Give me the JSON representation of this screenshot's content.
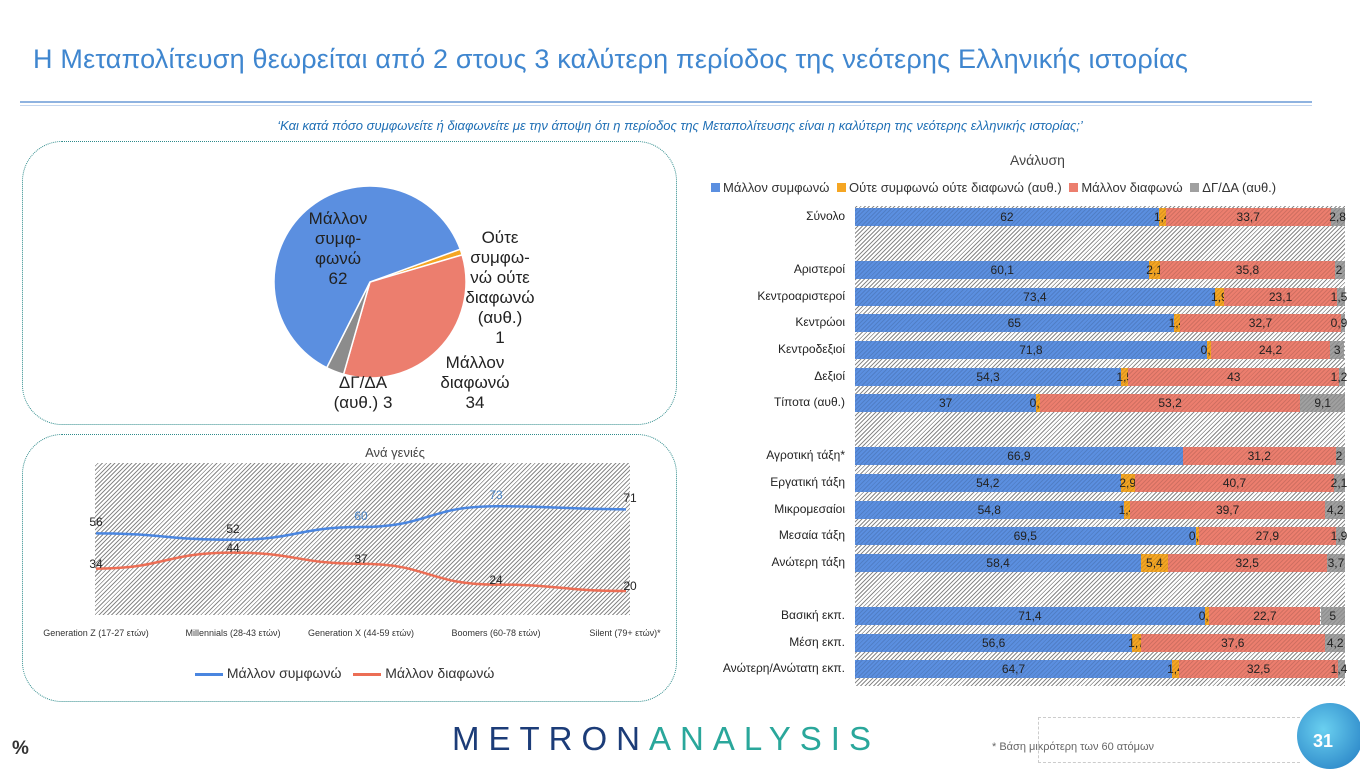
{
  "header": {
    "title": "Η Μεταπολίτευση θεωρείται από 2 στους 3 καλύτερη περίοδος της νεότερης Ελληνικής ιστορίας",
    "question": "‘Και κατά πόσο συμφωνείτε ή διαφωνείτε με την άποψη ότι η περίοδος της Μεταπολίτευσης είναι η καλύτερη της νεότερης ελληνικής ιστορίας;’"
  },
  "colors": {
    "agree": "#5b8fe0",
    "neutral": "#f5a623",
    "disagree": "#ec7e6e",
    "dk": "#a0a0a0",
    "title": "#3f86cf"
  },
  "chart_data": [
    {
      "type": "pie",
      "title": "",
      "slices": [
        {
          "label": "Ούτε συμφωνώ ούτε διαφωνώ (αυθ.)",
          "value": 1,
          "color": "#f5a623"
        },
        {
          "label": "Μάλλον διαφωνώ",
          "value": 34,
          "color": "#ec7e6e"
        },
        {
          "label": "ΔΓ/ΔΑ (αυθ.)",
          "value": 3,
          "color": "#8c8c8c"
        },
        {
          "label": "Μάλλον συμφωνώ",
          "value": 62,
          "color": "#5b8fe0"
        }
      ],
      "labels": {
        "agree": [
          "Μάλλον",
          "συμφ-",
          "φωνώ",
          "62"
        ],
        "neutral": [
          "Ούτε",
          "συμφω-",
          "νώ ούτε",
          "διαφωνώ",
          "(αυθ.)",
          "1"
        ],
        "disagree": [
          "Μάλλον",
          "διαφωνώ",
          "34"
        ],
        "dk": [
          "ΔΓ/ΔΑ",
          "(αυθ.) 3"
        ]
      }
    },
    {
      "type": "line",
      "title": "Ανά γενιές",
      "ylim": [
        5,
        100
      ],
      "grid": false,
      "legend": "bottom",
      "categories": [
        "Generation Z (17-27 ετών)",
        "Millennials (28-43 ετών)",
        "Generation X (44-59 ετών)",
        "Boomers (60-78 ετών)",
        "Silent (79+ ετών)*"
      ],
      "series": [
        {
          "name": "Μάλλον συμφωνώ",
          "values": [
            56,
            52,
            60,
            73,
            71
          ],
          "color": "#4a86e0"
        },
        {
          "name": "Μάλλον διαφωνώ",
          "values": [
            34,
            44,
            37,
            24,
            20
          ],
          "color": "#ec6e55"
        }
      ]
    },
    {
      "type": "bar",
      "stacked": true,
      "orientation": "horizontal",
      "title": "Ανάλυση",
      "legend": "top",
      "xlim": [
        0,
        100
      ],
      "series_names": [
        "Μάλλον συμφωνώ",
        "Ούτε συμφωνώ ούτε διαφωνώ (αυθ.)",
        "Μάλλον διαφωνώ",
        "ΔΓ/ΔΑ (αυθ.)"
      ],
      "rows": [
        {
          "label": "Σύνολο",
          "values": [
            62,
            1.4,
            33.7,
            2.8
          ]
        },
        null,
        {
          "label": "Αριστεροί",
          "values": [
            60.1,
            2.1,
            35.8,
            2
          ]
        },
        {
          "label": "Κεντροαριστεροί",
          "values": [
            73.4,
            1.9,
            23.1,
            1.5
          ]
        },
        {
          "label": "Κεντρώοι",
          "values": [
            65,
            1.4,
            32.7,
            0.9
          ]
        },
        {
          "label": "Κεντροδεξιοί",
          "values": [
            71.8,
            0.9,
            24.2,
            3
          ]
        },
        {
          "label": "Δεξιοί",
          "values": [
            54.3,
            1.5,
            43,
            1.2
          ]
        },
        {
          "label": "Τίποτα (αυθ.)",
          "values": [
            37,
            0.7,
            53.2,
            9.1
          ]
        },
        null,
        {
          "label": "Αγροτική τάξη*",
          "values": [
            66.9,
            null,
            31.2,
            2
          ]
        },
        {
          "label": "Εργατική τάξη",
          "values": [
            54.2,
            2.9,
            40.7,
            2.1
          ]
        },
        {
          "label": "Μικρομεσαίοι",
          "values": [
            54.8,
            1.4,
            39.7,
            4.2
          ]
        },
        {
          "label": "Μεσαία τάξη",
          "values": [
            69.5,
            0.7,
            27.9,
            1.9
          ]
        },
        {
          "label": "Ανώτερη τάξη",
          "values": [
            58.4,
            5.4,
            32.5,
            3.7
          ]
        },
        null,
        {
          "label": "Βασική εκπ.",
          "values": [
            71.4,
            0.9,
            22.7,
            5
          ]
        },
        {
          "label": "Μέση εκπ.",
          "values": [
            56.6,
            1.7,
            37.6,
            4.2
          ]
        },
        {
          "label": "Ανώτερη/Ανώτατη εκπ.",
          "values": [
            64.7,
            1.4,
            32.5,
            1.4
          ]
        }
      ]
    }
  ],
  "footer": {
    "unit": "%",
    "logo_a": "METRON",
    "logo_b": "ANALYSIS",
    "note": "*  Βάση μικρότερη των 60 ατόμων",
    "page": "31"
  }
}
